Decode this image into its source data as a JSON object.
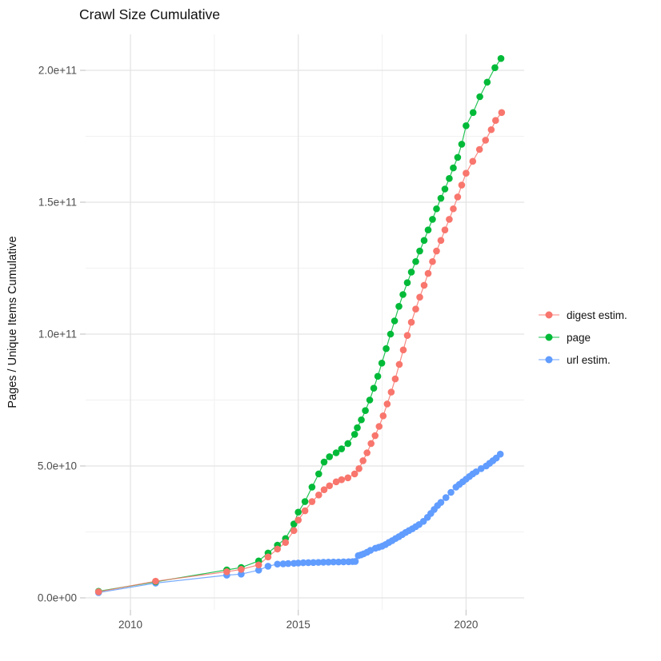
{
  "title": "Crawl Size Cumulative",
  "y_axis": {
    "label": "Pages / Unique Items Cumulative",
    "tick_labels": [
      "0.0e+00",
      "5.0e+10",
      "1.0e+11",
      "1.5e+11",
      "2.0e+11"
    ],
    "tick_values": [
      0,
      50000000000.0,
      100000000000.0,
      150000000000.0,
      200000000000.0
    ]
  },
  "x_axis": {
    "label": "",
    "tick_labels": [
      "2010",
      "2015",
      "2020"
    ],
    "tick_values": [
      2010,
      2015,
      2020
    ]
  },
  "legend": {
    "items": [
      {
        "label": "digest estim.",
        "color": "#F8766D"
      },
      {
        "label": "page",
        "color": "#00BA38"
      },
      {
        "label": "url estim.",
        "color": "#619CFF"
      }
    ]
  },
  "chart_data": {
    "type": "scatter",
    "title": "Crawl Size Cumulative",
    "xlabel": "",
    "ylabel": "Pages / Unique Items Cumulative",
    "xlim": [
      2008.66,
      2021.73
    ],
    "ylim": [
      -4500000000.0,
      213600000000.0
    ],
    "x_major_ticks": [
      2010,
      2015,
      2020
    ],
    "x_minor_ticks": [
      2012.5,
      2017.5
    ],
    "y_major_ticks": [
      0,
      50000000000.0,
      100000000000.0,
      150000000000.0,
      200000000000.0
    ],
    "y_minor_ticks": [
      25000000000.0,
      75000000000.0,
      125000000000.0,
      175000000000.0
    ],
    "grid": true,
    "legend_position": "right",
    "marker_style": "point-with-line",
    "series": [
      {
        "name": "url estim.",
        "color": "#619CFF",
        "points": [
          [
            2009.05,
            2000000000.0
          ],
          [
            2010.75,
            5600000000.0
          ],
          [
            2012.87,
            8600000000.0
          ],
          [
            2013.3,
            9000000000.0
          ],
          [
            2013.82,
            10500000000.0
          ],
          [
            2014.1,
            12000000000.0
          ],
          [
            2014.38,
            12800000000.0
          ],
          [
            2014.55,
            12900000000.0
          ],
          [
            2014.7,
            13000000000.0
          ],
          [
            2014.87,
            13100000000.0
          ],
          [
            2015.0,
            13200000000.0
          ],
          [
            2015.15,
            13300000000.0
          ],
          [
            2015.3,
            13350000000.0
          ],
          [
            2015.45,
            13400000000.0
          ],
          [
            2015.6,
            13450000000.0
          ],
          [
            2015.75,
            13500000000.0
          ],
          [
            2015.9,
            13550000000.0
          ],
          [
            2016.05,
            13600000000.0
          ],
          [
            2016.2,
            13600000000.0
          ],
          [
            2016.35,
            13650000000.0
          ],
          [
            2016.5,
            13700000000.0
          ],
          [
            2016.62,
            13750000000.0
          ],
          [
            2016.7,
            13800000000.0
          ],
          [
            2016.79,
            16000000000.0
          ],
          [
            2016.87,
            16300000000.0
          ],
          [
            2016.95,
            16700000000.0
          ],
          [
            2017.05,
            17300000000.0
          ],
          [
            2017.15,
            18000000000.0
          ],
          [
            2017.3,
            18800000000.0
          ],
          [
            2017.4,
            19200000000.0
          ],
          [
            2017.5,
            19600000000.0
          ],
          [
            2017.6,
            20200000000.0
          ],
          [
            2017.7,
            21000000000.0
          ],
          [
            2017.8,
            21700000000.0
          ],
          [
            2017.9,
            22500000000.0
          ],
          [
            2018.0,
            23200000000.0
          ],
          [
            2018.1,
            24000000000.0
          ],
          [
            2018.2,
            24800000000.0
          ],
          [
            2018.3,
            25500000000.0
          ],
          [
            2018.4,
            26200000000.0
          ],
          [
            2018.5,
            27000000000.0
          ],
          [
            2018.6,
            27800000000.0
          ],
          [
            2018.73,
            29000000000.0
          ],
          [
            2018.85,
            30500000000.0
          ],
          [
            2018.95,
            32000000000.0
          ],
          [
            2019.05,
            33500000000.0
          ],
          [
            2019.15,
            35000000000.0
          ],
          [
            2019.25,
            36200000000.0
          ],
          [
            2019.4,
            38000000000.0
          ],
          [
            2019.55,
            40000000000.0
          ],
          [
            2019.7,
            42000000000.0
          ],
          [
            2019.8,
            43000000000.0
          ],
          [
            2019.9,
            44000000000.0
          ],
          [
            2020.0,
            45000000000.0
          ],
          [
            2020.1,
            46000000000.0
          ],
          [
            2020.2,
            47000000000.0
          ],
          [
            2020.3,
            47800000000.0
          ],
          [
            2020.45,
            49000000000.0
          ],
          [
            2020.6,
            50000000000.0
          ],
          [
            2020.7,
            51000000000.0
          ],
          [
            2020.8,
            52000000000.0
          ],
          [
            2020.9,
            53000000000.0
          ],
          [
            2021.02,
            54500000000.0
          ]
        ]
      },
      {
        "name": "page",
        "color": "#00BA38",
        "points": [
          [
            2009.05,
            2500000000.0
          ],
          [
            2010.75,
            6100000000.0
          ],
          [
            2012.87,
            10600000000.0
          ],
          [
            2013.3,
            11500000000.0
          ],
          [
            2013.82,
            14000000000.0
          ],
          [
            2014.1,
            17000000000.0
          ],
          [
            2014.38,
            20000000000.0
          ],
          [
            2014.62,
            22500000000.0
          ],
          [
            2014.87,
            28000000000.0
          ],
          [
            2015.0,
            32500000000.0
          ],
          [
            2015.2,
            36500000000.0
          ],
          [
            2015.41,
            42000000000.0
          ],
          [
            2015.61,
            47000000000.0
          ],
          [
            2015.77,
            51500000000.0
          ],
          [
            2015.93,
            53500000000.0
          ],
          [
            2016.13,
            55000000000.0
          ],
          [
            2016.29,
            56500000000.0
          ],
          [
            2016.48,
            58500000000.0
          ],
          [
            2016.68,
            62000000000.0
          ],
          [
            2016.76,
            64500000000.0
          ],
          [
            2016.88,
            67500000000.0
          ],
          [
            2017.0,
            71000000000.0
          ],
          [
            2017.13,
            75000000000.0
          ],
          [
            2017.25,
            79500000000.0
          ],
          [
            2017.37,
            84000000000.0
          ],
          [
            2017.49,
            89000000000.0
          ],
          [
            2017.62,
            94500000000.0
          ],
          [
            2017.75,
            100000000000.0
          ],
          [
            2017.87,
            105000000000.0
          ],
          [
            2018.0,
            110500000000.0
          ],
          [
            2018.12,
            115000000000.0
          ],
          [
            2018.25,
            119500000000.0
          ],
          [
            2018.37,
            123500000000.0
          ],
          [
            2018.5,
            127500000000.0
          ],
          [
            2018.62,
            131500000000.0
          ],
          [
            2018.75,
            135500000000.0
          ],
          [
            2018.87,
            139500000000.0
          ],
          [
            2019.0,
            143500000000.0
          ],
          [
            2019.12,
            147500000000.0
          ],
          [
            2019.25,
            151500000000.0
          ],
          [
            2019.37,
            155000000000.0
          ],
          [
            2019.5,
            159000000000.0
          ],
          [
            2019.62,
            163000000000.0
          ],
          [
            2019.75,
            167000000000.0
          ],
          [
            2019.87,
            172000000000.0
          ],
          [
            2020.0,
            179000000000.0
          ],
          [
            2020.21,
            184000000000.0
          ],
          [
            2020.41,
            190000000000.0
          ],
          [
            2020.63,
            195500000000.0
          ],
          [
            2020.86,
            201000000000.0
          ],
          [
            2021.04,
            204500000000.0
          ]
        ]
      },
      {
        "name": "digest estim.",
        "color": "#F8766D",
        "points": [
          [
            2009.05,
            2300000000.0
          ],
          [
            2010.75,
            6300000000.0
          ],
          [
            2012.87,
            9900000000.0
          ],
          [
            2013.3,
            10800000000.0
          ],
          [
            2013.82,
            12500000000.0
          ],
          [
            2014.1,
            15500000000.0
          ],
          [
            2014.38,
            18500000000.0
          ],
          [
            2014.62,
            21000000000.0
          ],
          [
            2014.87,
            25500000000.0
          ],
          [
            2015.0,
            29500000000.0
          ],
          [
            2015.2,
            33000000000.0
          ],
          [
            2015.41,
            36500000000.0
          ],
          [
            2015.61,
            39000000000.0
          ],
          [
            2015.77,
            41000000000.0
          ],
          [
            2015.93,
            42500000000.0
          ],
          [
            2016.13,
            44000000000.0
          ],
          [
            2016.29,
            44800000000.0
          ],
          [
            2016.48,
            45500000000.0
          ],
          [
            2016.68,
            47000000000.0
          ],
          [
            2016.81,
            49000000000.0
          ],
          [
            2016.93,
            52000000000.0
          ],
          [
            2017.05,
            55000000000.0
          ],
          [
            2017.17,
            58500000000.0
          ],
          [
            2017.29,
            61500000000.0
          ],
          [
            2017.41,
            65000000000.0
          ],
          [
            2017.53,
            69000000000.0
          ],
          [
            2017.65,
            73500000000.0
          ],
          [
            2017.77,
            78000000000.0
          ],
          [
            2017.89,
            83000000000.0
          ],
          [
            2018.01,
            88500000000.0
          ],
          [
            2018.13,
            94000000000.0
          ],
          [
            2018.25,
            99500000000.0
          ],
          [
            2018.37,
            104500000000.0
          ],
          [
            2018.5,
            109500000000.0
          ],
          [
            2018.62,
            114000000000.0
          ],
          [
            2018.75,
            118500000000.0
          ],
          [
            2018.87,
            123000000000.0
          ],
          [
            2019.0,
            127500000000.0
          ],
          [
            2019.12,
            131500000000.0
          ],
          [
            2019.25,
            135500000000.0
          ],
          [
            2019.37,
            139500000000.0
          ],
          [
            2019.5,
            143500000000.0
          ],
          [
            2019.62,
            147500000000.0
          ],
          [
            2019.75,
            152000000000.0
          ],
          [
            2019.87,
            156500000000.0
          ],
          [
            2020.0,
            161000000000.0
          ],
          [
            2020.2,
            165500000000.0
          ],
          [
            2020.4,
            170000000000.0
          ],
          [
            2020.58,
            173500000000.0
          ],
          [
            2020.75,
            177500000000.0
          ],
          [
            2020.88,
            181000000000.0
          ],
          [
            2021.06,
            184000000000.0
          ]
        ]
      }
    ]
  },
  "style": {
    "grid_major_color": "#E3E3E3",
    "grid_minor_color": "#F1F1F1",
    "tick_mark_color": "#C9C9C9",
    "tick_label_color": "#4D4D4D",
    "background": "#FFFFFF"
  }
}
